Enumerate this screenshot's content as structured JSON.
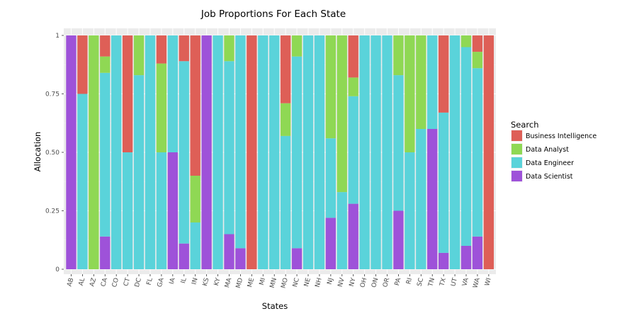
{
  "chart_data": {
    "type": "bar",
    "stacked": true,
    "title": "Job Proportions For Each State",
    "xlabel": "States",
    "ylabel": "Allocation",
    "ylim": [
      0,
      1
    ],
    "yticks": [
      "0",
      "0.25",
      "0.50",
      "0.75",
      "1"
    ],
    "yticks_values": [
      0,
      0.25,
      0.5,
      0.75,
      1
    ],
    "grid": true,
    "legend": {
      "title": "Search",
      "position": "right"
    },
    "categories": [
      "AB",
      "AL",
      "AZ",
      "CA",
      "CO",
      "CT",
      "DC",
      "FL",
      "GA",
      "IA",
      "IL",
      "IN",
      "KS",
      "KY",
      "MA",
      "MD",
      "ME",
      "MI",
      "MN",
      "MO",
      "NC",
      "NE",
      "NH",
      "NJ",
      "NV",
      "NY",
      "OH",
      "ON",
      "OR",
      "PA",
      "RI",
      "SC",
      "TN",
      "TX",
      "UT",
      "VA",
      "WA",
      "WI"
    ],
    "series": [
      {
        "name": "Data Scientist",
        "color": "#9e52d9",
        "values": [
          1,
          0,
          0,
          0.14,
          0,
          0,
          0,
          0,
          0,
          0.5,
          0.11,
          0,
          1,
          0,
          0.15,
          0.09,
          0,
          0,
          0,
          0,
          0.09,
          0,
          0,
          0.22,
          0,
          0.28,
          0,
          0,
          0,
          0.25,
          0,
          0,
          0.6,
          0.07,
          0,
          0.1,
          0.14,
          0
        ]
      },
      {
        "name": "Data Engineer",
        "color": "#5ad3da",
        "values": [
          0,
          0.75,
          0,
          0.7,
          1,
          0.5,
          0.83,
          1,
          0.5,
          0.5,
          0.78,
          0.2,
          0,
          1,
          0.74,
          0.91,
          0,
          1,
          1,
          0.57,
          0.82,
          1,
          1,
          0.34,
          0.33,
          0.46,
          1,
          1,
          1,
          0.58,
          0.5,
          0.6,
          0.4,
          0.6,
          1,
          0.85,
          0.72,
          0
        ]
      },
      {
        "name": "Data Analyst",
        "color": "#8fd854",
        "values": [
          0,
          0,
          1,
          0.07,
          0,
          0,
          0.17,
          0,
          0.38,
          0,
          0,
          0.2,
          0,
          0,
          0.11,
          0,
          0,
          0,
          0,
          0.14,
          0.09,
          0,
          0,
          0.44,
          0.67,
          0.08,
          0,
          0,
          0,
          0.17,
          0.5,
          0.4,
          0,
          0,
          0,
          0.05,
          0.07,
          0
        ]
      },
      {
        "name": "Business Intelligence",
        "color": "#de5f57",
        "values": [
          0,
          0.25,
          0,
          0.09,
          0,
          0.5,
          0,
          0,
          0.12,
          0,
          0.11,
          0.6,
          0,
          0,
          0,
          0,
          1,
          0,
          0,
          0.29,
          0,
          0,
          0,
          0,
          0,
          0.18,
          0,
          0,
          0,
          0,
          0,
          0,
          0,
          0.33,
          0,
          0,
          0.07,
          1
        ]
      }
    ]
  }
}
